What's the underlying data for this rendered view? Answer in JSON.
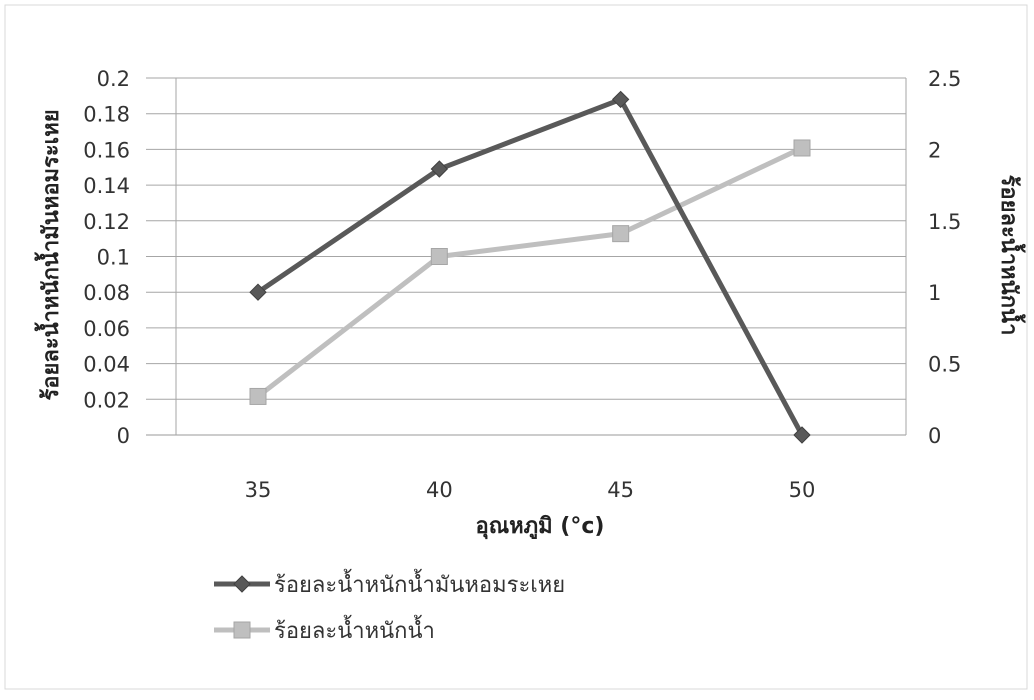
{
  "chart_data": {
    "type": "line",
    "title": "",
    "xlabel": "อุณหภูมิ (°c)",
    "ylabel_left": "ร้อยละน้ำหนักน้ำมันหอมระเหย",
    "ylabel_right": "ร้อยละน้ำหนักน้ำ",
    "categories": [
      "35",
      "40",
      "45",
      "50"
    ],
    "y_left": {
      "ylim": [
        0,
        0.2
      ],
      "ticks": [
        "0",
        "0.02",
        "0.04",
        "0.06",
        "0.08",
        "0.1",
        "0.12",
        "0.14",
        "0.16",
        "0.18",
        "0.2"
      ]
    },
    "y_right": {
      "ylim": [
        0,
        2.5
      ],
      "ticks": [
        "0",
        "0.5",
        "1",
        "1.5",
        "2",
        "2.5"
      ]
    },
    "grid": true,
    "legend_position": "bottom-left",
    "series": [
      {
        "name": "ร้อยละน้ำหนักน้ำมันหอมระเหย",
        "axis": "left",
        "values": [
          0.08,
          0.149,
          0.188,
          0
        ],
        "color": "#595959",
        "marker": "diamond"
      },
      {
        "name": "ร้อยละน้ำหนักน้ำ",
        "axis": "right",
        "values": [
          0.27,
          1.25,
          1.41,
          2.01
        ],
        "color": "#bfbfbf",
        "marker": "square"
      }
    ]
  }
}
